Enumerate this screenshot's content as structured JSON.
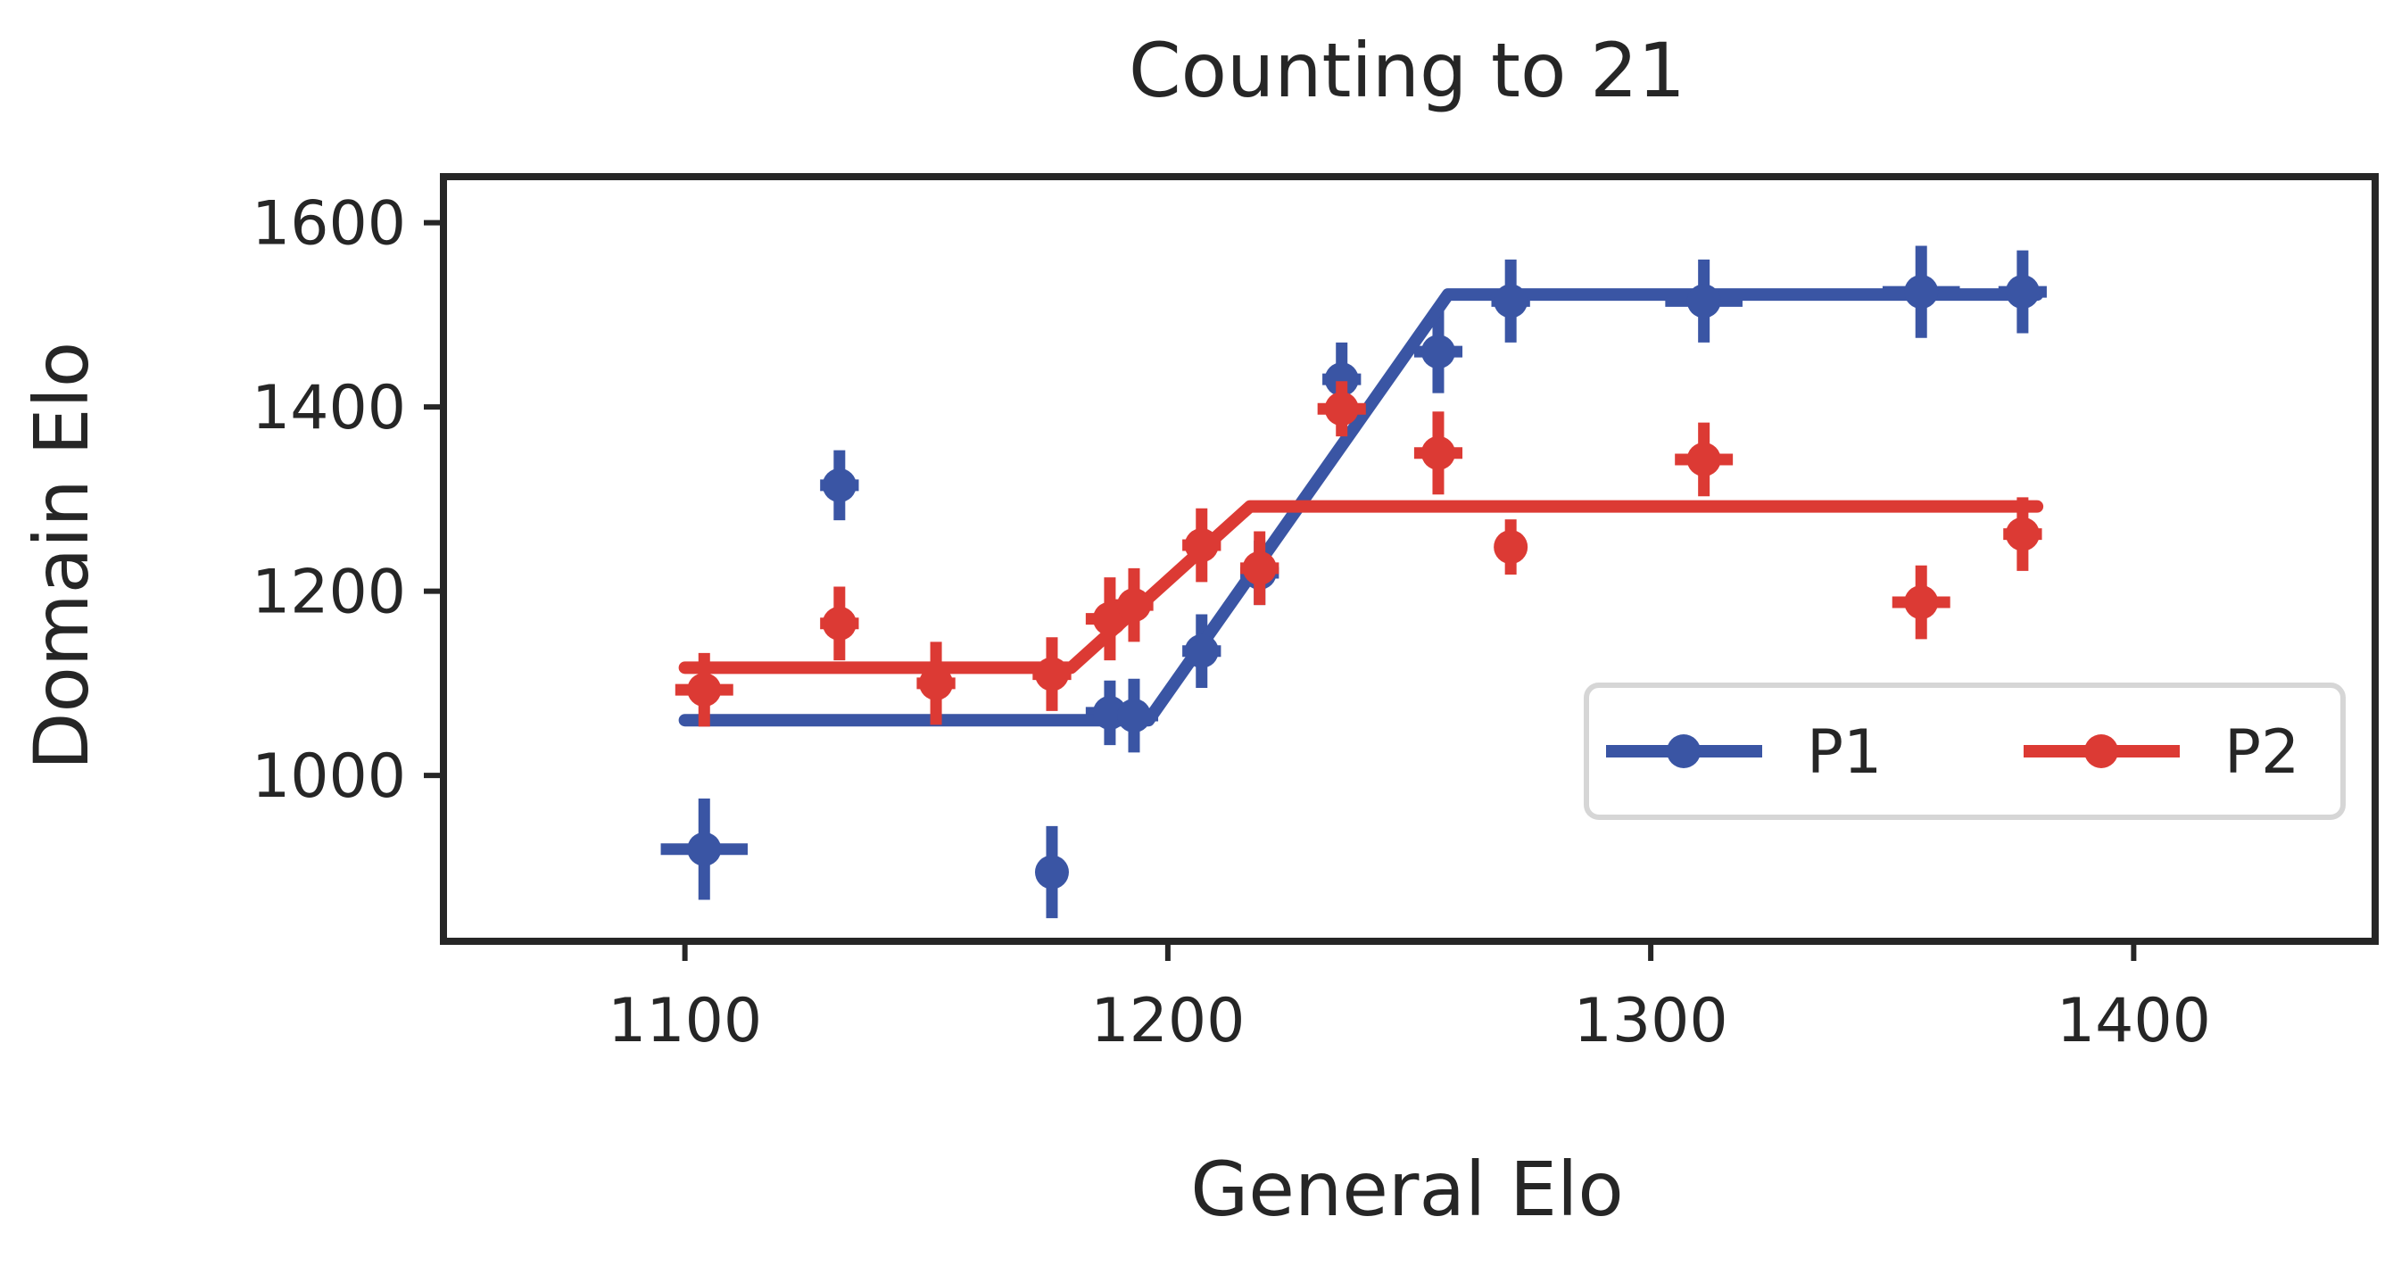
{
  "chart_data": {
    "type": "scatter",
    "title": "Counting to 21",
    "xlabel": "General Elo",
    "ylabel": "Domain Elo",
    "xlim": [
      1050,
      1450
    ],
    "ylim": [
      820,
      1650
    ],
    "xticks": [
      1100,
      1200,
      1300,
      1400
    ],
    "yticks": [
      1000,
      1200,
      1400,
      1600
    ],
    "grid": false,
    "legend_position": "lower-right",
    "series": [
      {
        "name": "P1",
        "color": "#3a55a4",
        "points": [
          {
            "x": 1104,
            "y": 920,
            "xerr": 9,
            "yerr": 55
          },
          {
            "x": 1132,
            "y": 1315,
            "xerr": 4,
            "yerr": 38
          },
          {
            "x": 1176,
            "y": 895,
            "xerr": 0,
            "yerr": 50
          },
          {
            "x": 1188,
            "y": 1068,
            "xerr": 5,
            "yerr": 35
          },
          {
            "x": 1193,
            "y": 1065,
            "xerr": 5,
            "yerr": 40
          },
          {
            "x": 1207,
            "y": 1135,
            "xerr": 4,
            "yerr": 40
          },
          {
            "x": 1219,
            "y": 1220,
            "xerr": 4,
            "yerr": 35
          },
          {
            "x": 1236,
            "y": 1430,
            "xerr": 4,
            "yerr": 40
          },
          {
            "x": 1256,
            "y": 1460,
            "xerr": 5,
            "yerr": 45
          },
          {
            "x": 1271,
            "y": 1515,
            "xerr": 4,
            "yerr": 45
          },
          {
            "x": 1311,
            "y": 1515,
            "xerr": 8,
            "yerr": 45
          },
          {
            "x": 1356,
            "y": 1525,
            "xerr": 8,
            "yerr": 50
          },
          {
            "x": 1377,
            "y": 1525,
            "xerr": 5,
            "yerr": 45
          }
        ],
        "fit": [
          [
            1100,
            1060
          ],
          [
            1196,
            1060
          ],
          [
            1258,
            1522
          ],
          [
            1380,
            1522
          ]
        ]
      },
      {
        "name": "P2",
        "color": "#dc3a34",
        "points": [
          {
            "x": 1104,
            "y": 1093,
            "xerr": 6,
            "yerr": 40
          },
          {
            "x": 1132,
            "y": 1165,
            "xerr": 4,
            "yerr": 40
          },
          {
            "x": 1152,
            "y": 1100,
            "xerr": 4,
            "yerr": 45
          },
          {
            "x": 1176,
            "y": 1110,
            "xerr": 4,
            "yerr": 40
          },
          {
            "x": 1188,
            "y": 1170,
            "xerr": 5,
            "yerr": 45
          },
          {
            "x": 1193,
            "y": 1185,
            "xerr": 4,
            "yerr": 40
          },
          {
            "x": 1207,
            "y": 1250,
            "xerr": 4,
            "yerr": 40
          },
          {
            "x": 1219,
            "y": 1225,
            "xerr": 4,
            "yerr": 40
          },
          {
            "x": 1236,
            "y": 1398,
            "xerr": 5,
            "yerr": 30
          },
          {
            "x": 1256,
            "y": 1350,
            "xerr": 5,
            "yerr": 45
          },
          {
            "x": 1271,
            "y": 1248,
            "xerr": 3,
            "yerr": 30
          },
          {
            "x": 1311,
            "y": 1343,
            "xerr": 6,
            "yerr": 40
          },
          {
            "x": 1356,
            "y": 1188,
            "xerr": 6,
            "yerr": 40
          },
          {
            "x": 1377,
            "y": 1262,
            "xerr": 4,
            "yerr": 40
          }
        ],
        "fit": [
          [
            1100,
            1117
          ],
          [
            1180,
            1117
          ],
          [
            1217,
            1292
          ],
          [
            1380,
            1292
          ]
        ]
      }
    ]
  }
}
